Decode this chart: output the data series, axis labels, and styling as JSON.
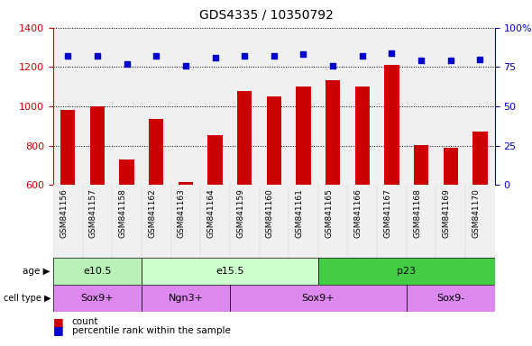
{
  "title": "GDS4335 / 10350792",
  "samples": [
    "GSM841156",
    "GSM841157",
    "GSM841158",
    "GSM841162",
    "GSM841163",
    "GSM841164",
    "GSM841159",
    "GSM841160",
    "GSM841161",
    "GSM841165",
    "GSM841166",
    "GSM841167",
    "GSM841168",
    "GSM841169",
    "GSM841170"
  ],
  "counts": [
    980,
    1000,
    730,
    935,
    615,
    855,
    1080,
    1050,
    1100,
    1135,
    1100,
    1210,
    805,
    790,
    870
  ],
  "percentiles": [
    82,
    82,
    77,
    82,
    76,
    81,
    82,
    82,
    83,
    76,
    82,
    84,
    79,
    79,
    80
  ],
  "ylim_left": [
    600,
    1400
  ],
  "ylim_right": [
    0,
    100
  ],
  "bar_color": "#cc0000",
  "dot_color": "#0000cc",
  "grid_yticks_left": [
    600,
    800,
    1000,
    1200,
    1400
  ],
  "grid_yticks_right": [
    0,
    25,
    50,
    75,
    100
  ],
  "age_groups": [
    {
      "label": "e10.5",
      "start": 0,
      "end": 3,
      "color": "#b8f0b8"
    },
    {
      "label": "e15.5",
      "start": 3,
      "end": 9,
      "color": "#ccffcc"
    },
    {
      "label": "p23",
      "start": 9,
      "end": 15,
      "color": "#44cc44"
    }
  ],
  "cell_types": [
    {
      "label": "Sox9+",
      "start": 0,
      "end": 3,
      "color": "#dd88ee"
    },
    {
      "label": "Ngn3+",
      "start": 3,
      "end": 6,
      "color": "#dd88ee"
    },
    {
      "label": "Sox9+",
      "start": 6,
      "end": 12,
      "color": "#dd88ee"
    },
    {
      "label": "Sox9-",
      "start": 12,
      "end": 15,
      "color": "#dd88ee"
    }
  ],
  "left_tick_color": "#cc0000",
  "right_tick_color": "#0000cc",
  "legend_count_color": "#cc0000",
  "legend_dot_color": "#0000cc",
  "chart_bg": "#f0f0f0",
  "title_fontsize": 10,
  "bar_width": 0.5
}
